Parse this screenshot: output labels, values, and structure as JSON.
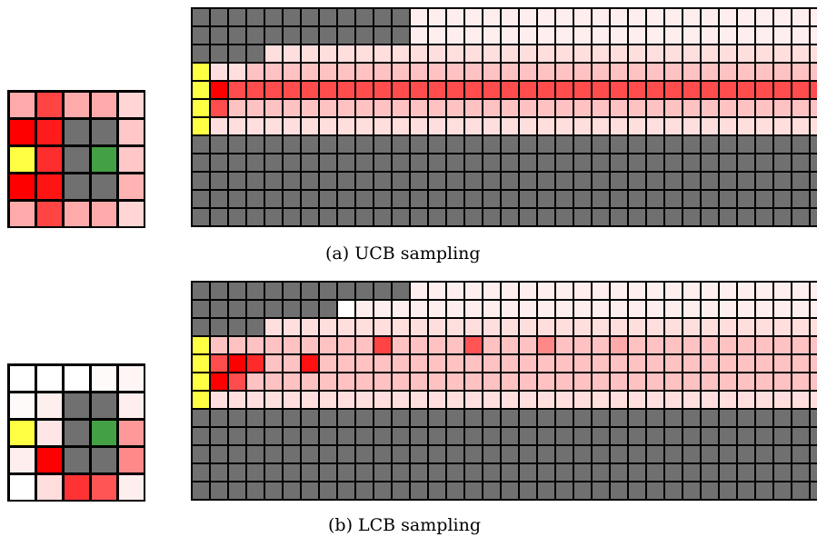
{
  "figure": {
    "panels": [
      {
        "id": "a",
        "caption": "(a) UCB sampling",
        "small_grid": [
          [
            "#ffaaaa",
            "#ff4444",
            "#ffaaaa",
            "#ffaaaa",
            "#ffd5d5"
          ],
          [
            "#ff0000",
            "#ff1b1b",
            "#707070",
            "#707070",
            "#ffc7c7"
          ],
          [
            "#ffff44",
            "#ff2e2e",
            "#707070",
            "#44a044",
            "#ffc7c7"
          ],
          [
            "#ff0000",
            "#ff1414",
            "#707070",
            "#707070",
            "#ffb3b3"
          ],
          [
            "#ffaaaa",
            "#ff4444",
            "#ffaaaa",
            "#ffaaaa",
            "#ffd5d5"
          ]
        ],
        "large_grid": [
          "GGGGGGGGGGGGmmmmmmmmmmmmmmmmmmmmmmmmmmmmmmmmmmm",
          "GGGGGGGGGGGGmmmmmmmmmmmmmmmmmmmmmmmmmmmmmmmmmmm",
          "GGGGllllllllllllllllllllllllllllllllllllmmmmmmm",
          "Yllkkkkkkkkkkkkkkkkkkkkkkkkkkkkkkkkkkkkkmmmmmmm",
          "YRrrrrrrrrrrrrrrrrrrrrrrrrrrrrrrrrrrrrrrmmmmmmm",
          "Yrkkkkkkkkkkkkkkkkkkkkkkkkkkkkkkkkkkkkkkmmmmmmm",
          "Ylllllllllllllllllllllllllllllllllllllllmmmmmmm",
          "GGGGGGGGGGGGGGGGGGGGGGGGGGGGGGGGGGGGGGGGGGGGmmm",
          "GGGGGGGGGGGGGGGGGGGGGGGGGGGGGGGGGGGGGGGGGGGGmmm",
          "GGGGGGGGGGGGGGGGGGGGGGGGGGGGGGGGGGGGGGGGGGGGWWW",
          "GGGGGGGGGGGGGGGGGGGGGGGGGGGGGGGGGGGGGGGGGGGGWWW",
          "GGGGGGGGGGGGGGGGGGGGGGGGGGGGGGGGGGGGGGGGGGGGEEE"
        ]
      },
      {
        "id": "b",
        "caption": "(b) LCB sampling",
        "small_grid": [
          [
            "#ffffff",
            "#ffffff",
            "#ffffff",
            "#fffafa",
            "#fff5f5"
          ],
          [
            "#fffafa",
            "#ffeeee",
            "#707070",
            "#707070",
            "#ffeeee"
          ],
          [
            "#ffff44",
            "#ffe5e5",
            "#707070",
            "#44a044",
            "#ff9999"
          ],
          [
            "#ffeeee",
            "#ff0000",
            "#707070",
            "#707070",
            "#ff8888"
          ],
          [
            "#ffffff",
            "#ffdddd",
            "#ff3333",
            "#ff5555",
            "#ffeeee"
          ]
        ],
        "large_grid": [
          "GGGGGGGGGGGGmmmmmmmmmmmmmmmmmmmmmmmmmmmmmmmmmmm",
          "GGGGGGGGWmmmmmmmmmmmmmmmmmmmmmmmmmmmmmmmmmmmmmm",
          "GGGGllllllllllllllllllllllllllllllllllllmmmmmmm",
          "YkkkkkkkkkkkkkkkkkkkkkkkkkkkkkkkkkkkkkkkWkkkkkk",
          "YrRkkkkkkkkkkkkkkkkkkkkkkkkkkkkkkkkkkkkkkkkkkkk",
          "YRrkkkkkkkkkkkkkkkkkkkkkkkkkkkkkkkkkkkkkkkkkkkk",
          "Ylllllllllllllllllllllllllllllllllllllllllkkkkk",
          "GGGGGGGGGGGGGGGGGGGGGGGGGGGGGGGGGGGGGGGGGGGGkkk",
          "GGGGGGGGGGGGGGGGGGGGGGGGGGGGGGGGGGGGGGGGGGGGkkk",
          "GGGGGGGGGGGGGGGGGGGGGGGGGGGGGGGGGGGGGGGGGGGGWkk",
          "GGGGGGGGGGGGGGGGGGGGGGGGGGGGGGGGGGGGGGGGGGGGWWk",
          "GGGGGGGGGGGGGGGGGGGGGGGGGGGGGGGGGGGGGGGGGGGGEEE"
        ],
        "large_hotspots": [
          {
            "row": 4,
            "col": 6,
            "color": "#ff1111"
          },
          {
            "row": 3,
            "col": 10,
            "color": "#ff4444"
          },
          {
            "row": 3,
            "col": 15,
            "color": "#ff5555"
          },
          {
            "row": 3,
            "col": 19,
            "color": "#ff8888"
          },
          {
            "row": 3,
            "col": 23,
            "color": "#ffaaaa"
          },
          {
            "row": 4,
            "col": 3,
            "color": "#ff2a2a"
          },
          {
            "row": 5,
            "col": 1,
            "color": "#ff0000"
          }
        ]
      }
    ],
    "palette": {
      "G": "#707070",
      "Y": "#ffff44",
      "E": "#44a044",
      "W": "#ffffff",
      "R": "#ff0000",
      "r": "#ff4d4d",
      "k": "#ffc2c2",
      "l": "#ffdede",
      "m": "#ffeeee"
    }
  }
}
